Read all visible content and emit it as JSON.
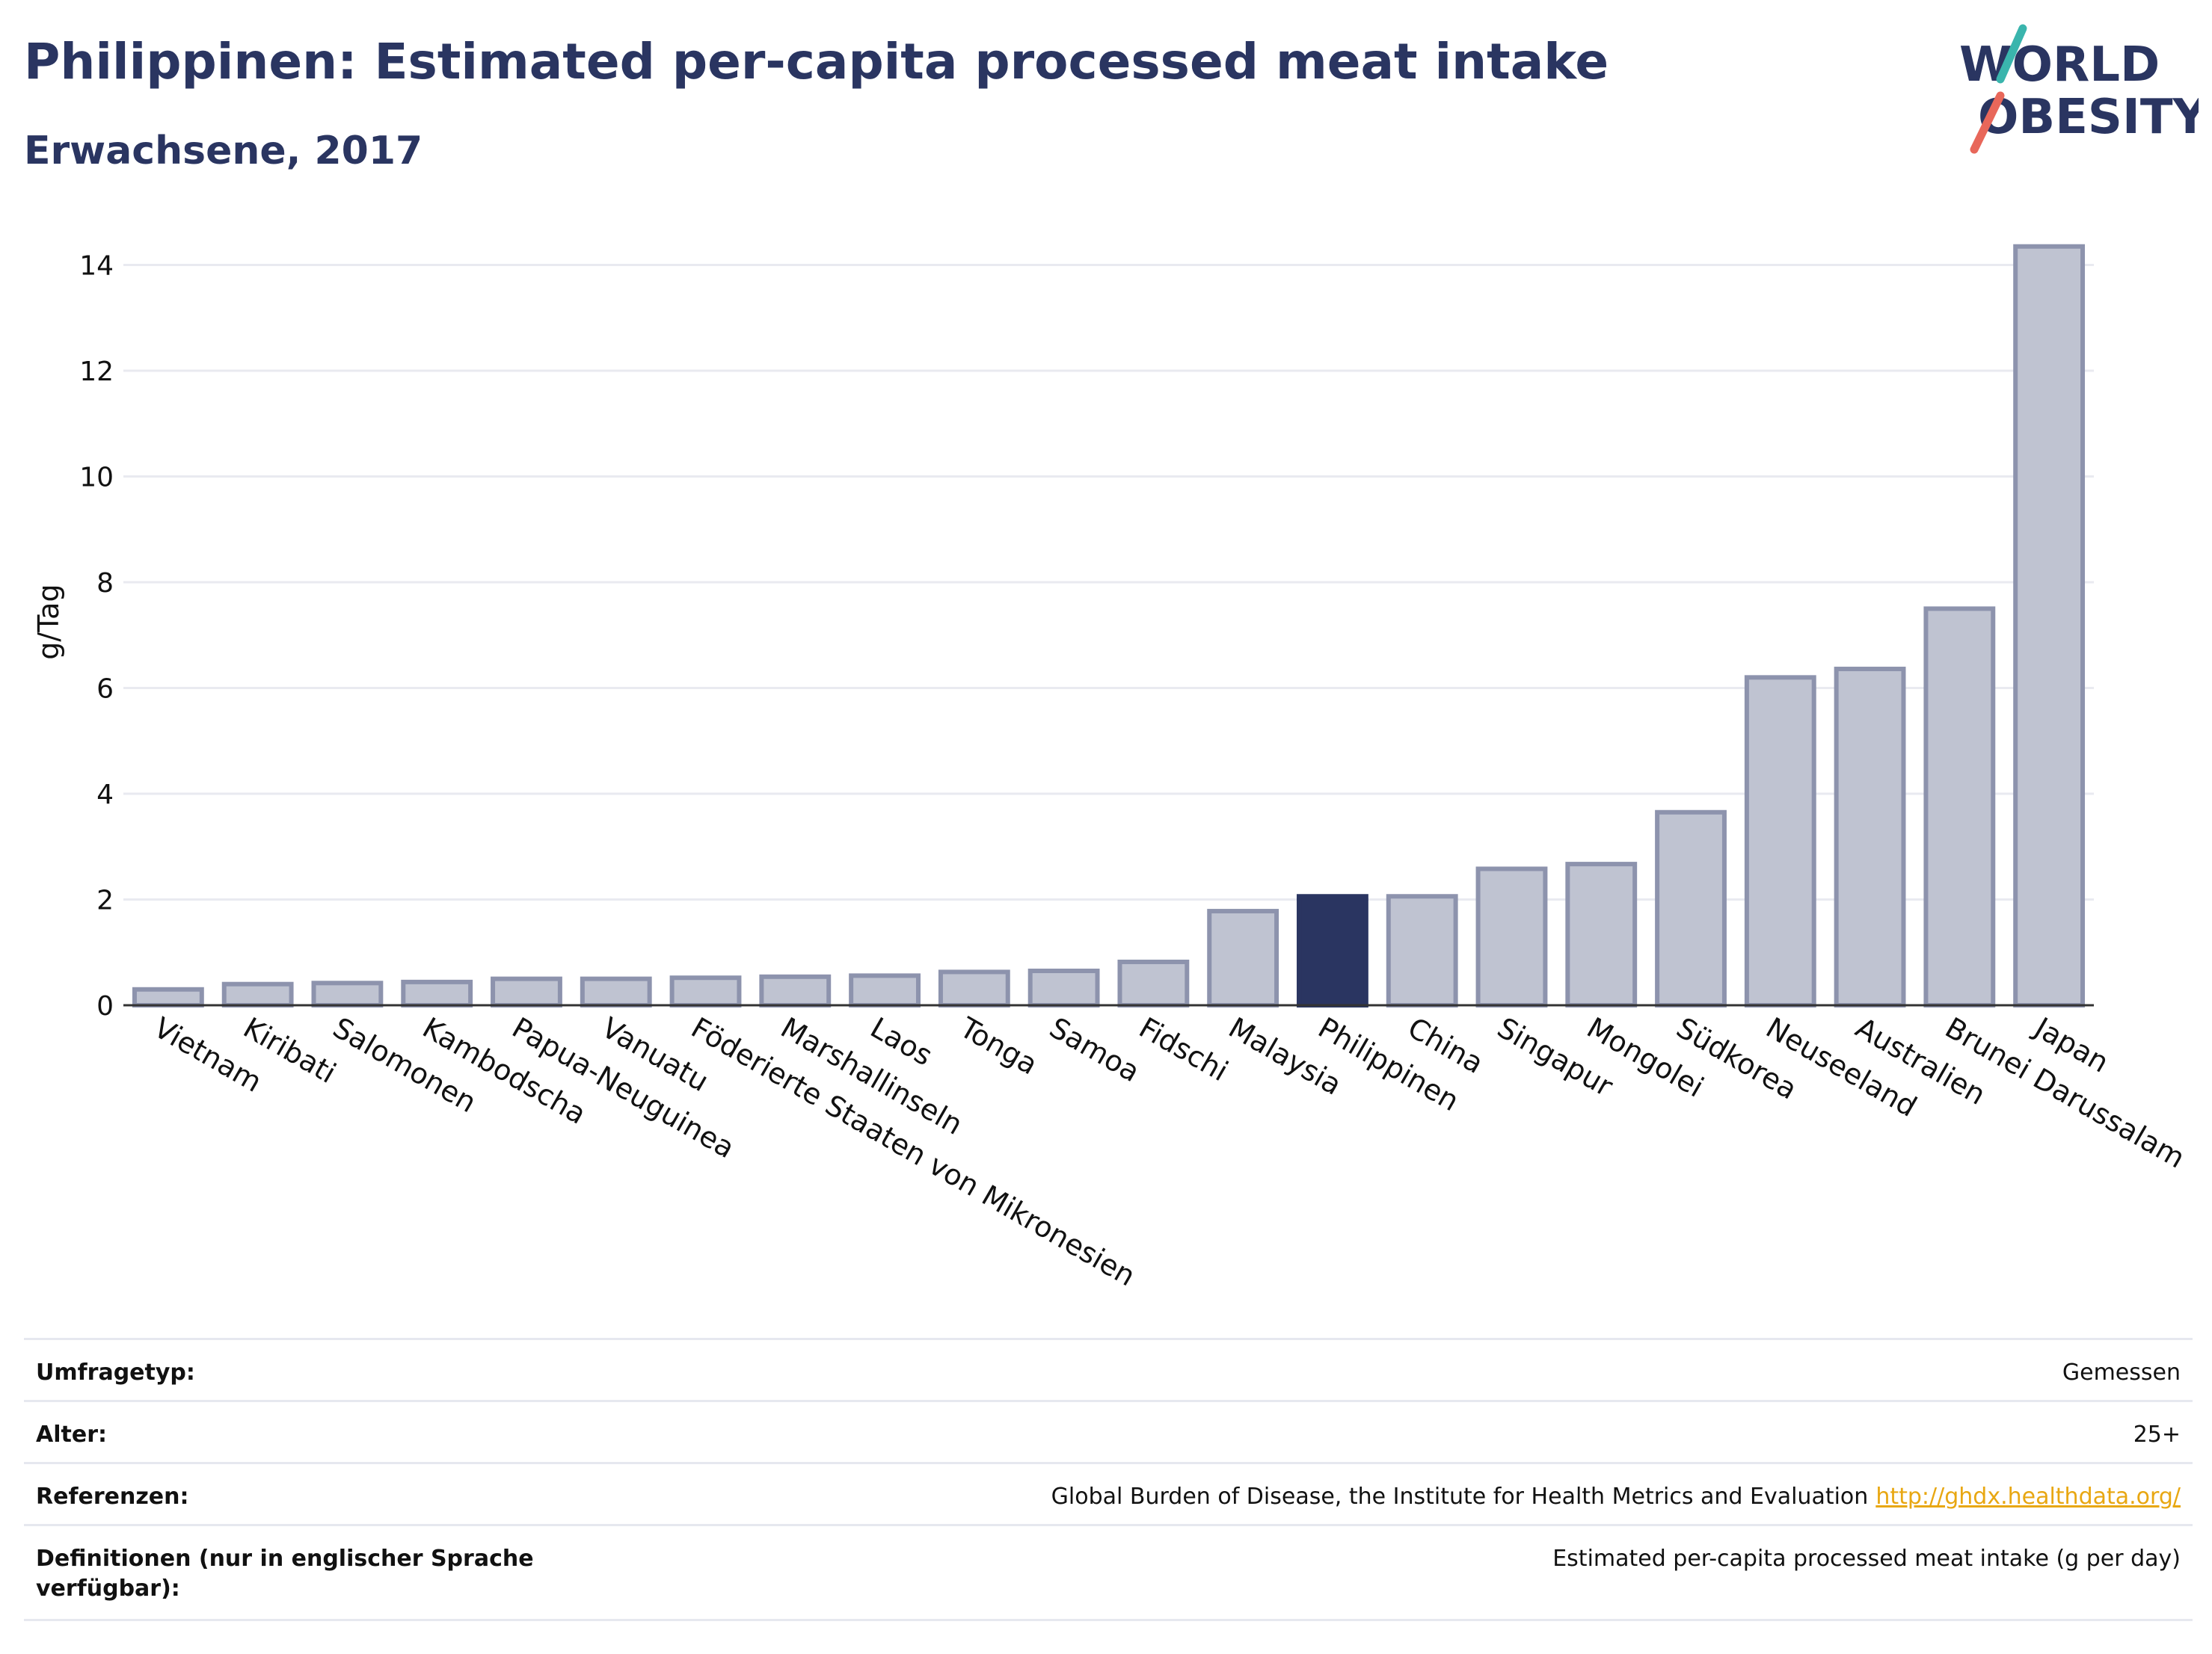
{
  "header": {
    "title": "Philippinen: Estimated per-capita processed meat intake",
    "subtitle": "Erwachsene, 2017"
  },
  "logo": {
    "line1": "WORLD",
    "line2": "OBESITY",
    "colors": {
      "text": "#2a3561",
      "slash_top": "#3ab5ad",
      "slash_bottom": "#e8675a"
    }
  },
  "colors": {
    "bar": "#bfc3d1",
    "bar_stroke": "#8d93ad",
    "highlight": "#2a3561",
    "grid": "#e9eaf0",
    "axis": "#333333"
  },
  "chart_data": {
    "type": "bar",
    "ylabel": "g/Tag",
    "ylim": [
      0,
      14.5
    ],
    "yticks": [
      0,
      2,
      4,
      6,
      8,
      10,
      12,
      14
    ],
    "grid": true,
    "highlight": "Philippinen",
    "categories": [
      "Vietnam",
      "Kiribati",
      "Salomonen",
      "Kambodscha",
      "Papua-Neuguinea",
      "Vanuatu",
      "Föderierte Staaten von Mikronesien",
      "Marshallinseln",
      "Laos",
      "Tonga",
      "Samoa",
      "Fidschi",
      "Malaysia",
      "Philippinen",
      "China",
      "Singapur",
      "Mongolei",
      "Südkorea",
      "Neuseeland",
      "Australien",
      "Brunei Darussalam",
      "Japan"
    ],
    "values": [
      0.3,
      0.4,
      0.42,
      0.44,
      0.5,
      0.5,
      0.52,
      0.54,
      0.56,
      0.63,
      0.65,
      0.82,
      1.78,
      2.06,
      2.06,
      2.58,
      2.67,
      3.65,
      6.2,
      6.36,
      7.5,
      14.35
    ]
  },
  "info": [
    {
      "label": "Umfragetyp:",
      "value": "Gemessen"
    },
    {
      "label": "Alter:",
      "value": "25+"
    },
    {
      "label": "Referenzen:",
      "value": "Global Burden of Disease, the Institute for Health Metrics and Evaluation",
      "link": "http://ghdx.healthdata.org/"
    },
    {
      "label": "Definitionen (nur in englischer Sprache verfügbar):",
      "value": "Estimated per-capita processed meat intake (g per day)"
    }
  ]
}
